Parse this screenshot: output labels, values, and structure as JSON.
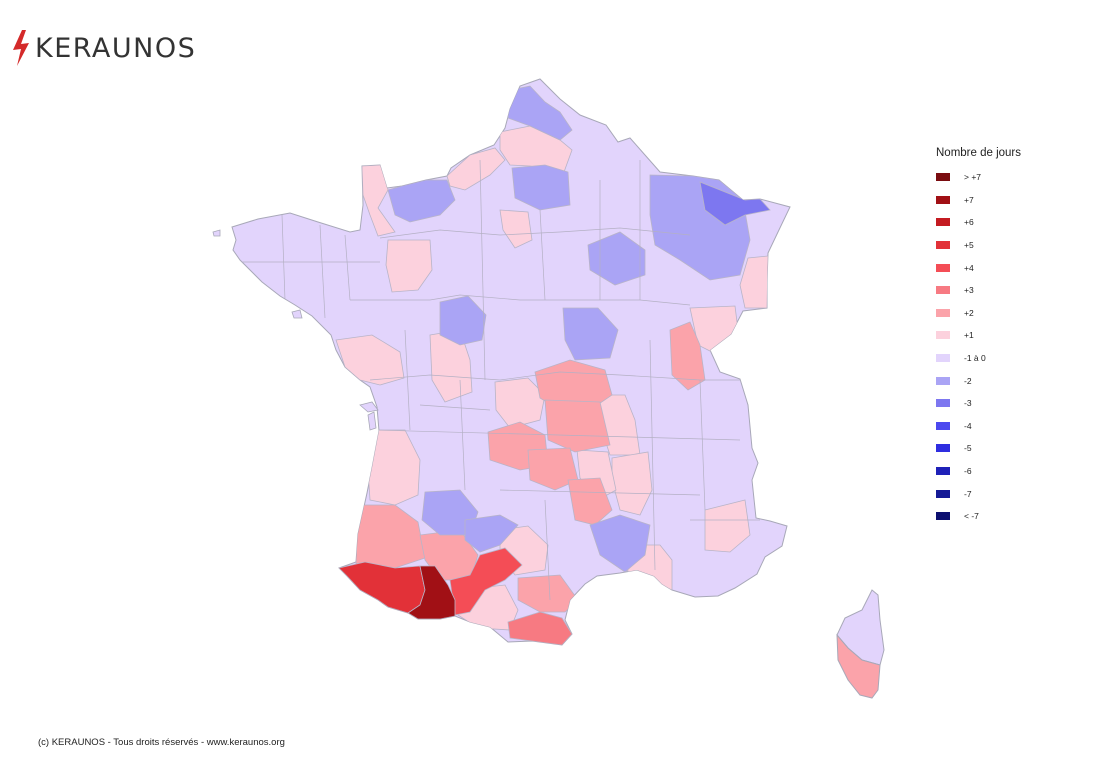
{
  "brand": {
    "name": "KERAUNOS",
    "accent": "#d42a2a",
    "text_color": "#333333"
  },
  "legend": {
    "title": "Nombre de jours",
    "items": [
      {
        "label": "> +7",
        "color": "#7a0c10"
      },
      {
        "label": "+7",
        "color": "#a11015"
      },
      {
        "label": "+6",
        "color": "#c41b21"
      },
      {
        "label": "+5",
        "color": "#e23138"
      },
      {
        "label": "+4",
        "color": "#f44d56"
      },
      {
        "label": "+3",
        "color": "#f77a82"
      },
      {
        "label": "+2",
        "color": "#fba3aa"
      },
      {
        "label": "+1",
        "color": "#fcd1dd"
      },
      {
        "label": "-1 à 0",
        "color": "#e2d4fc"
      },
      {
        "label": "-2",
        "color": "#aaa4f5"
      },
      {
        "label": "-3",
        "color": "#7d77f0"
      },
      {
        "label": "-4",
        "color": "#4c49ef"
      },
      {
        "label": "-5",
        "color": "#2f2ee0"
      },
      {
        "label": "-6",
        "color": "#1f21b8"
      },
      {
        "label": "-7",
        "color": "#151a96"
      },
      {
        "label": "< -7",
        "color": "#0c0f70"
      }
    ]
  },
  "map_colors": {
    "base": "#e2d4fc",
    "border": "#a8a8b8"
  },
  "footer": "(c) KERAUNOS - Tous droits réservés - www.keraunos.org"
}
